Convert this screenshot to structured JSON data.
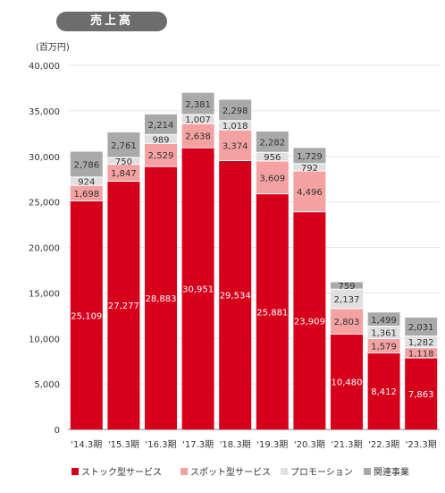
{
  "title": "売上高",
  "colors": {
    "title_bg": "#6d6d6d",
    "stock": "#d7001b",
    "spot": "#f3a1a1",
    "promo": "#e0e0e0",
    "related": "#a9a9a9"
  },
  "chart_data": {
    "type": "bar",
    "stacked": true,
    "unit_label": "(百万円)",
    "categories": [
      "'14.3期",
      "'15.3期",
      "'16.3期",
      "'17.3期",
      "'18.3期",
      "'19.3期",
      "'20.3期",
      "'21.3期",
      "'22.3期",
      "'23.3期"
    ],
    "ylim": [
      0,
      40000
    ],
    "yticks": [
      0,
      5000,
      10000,
      15000,
      20000,
      25000,
      30000,
      35000,
      40000
    ],
    "ytick_labels": [
      "0",
      "5,000",
      "10,000",
      "15,000",
      "20,000",
      "25,000",
      "30,000",
      "35,000",
      "40,000"
    ],
    "grid": true,
    "legend": "bottom",
    "series": [
      {
        "name": "ストック型サービス",
        "color": "#d7001b",
        "values": [
          25109,
          27277,
          28883,
          30951,
          29534,
          25881,
          23909,
          10480,
          8412,
          7863
        ],
        "labels": [
          "25,109",
          "27,277",
          "28,883",
          "30,951",
          "29,534",
          "25,881",
          "23,909",
          "10,480",
          "8,412",
          "7,863"
        ]
      },
      {
        "name": "スポット型サービス",
        "color": "#f3a1a1",
        "values": [
          1698,
          1847,
          2529,
          2638,
          3374,
          3609,
          4496,
          2803,
          1579,
          1118
        ],
        "labels": [
          "1,698",
          "1,847",
          "2,529",
          "2,638",
          "3,374",
          "3,609",
          "4,496",
          "2,803",
          "1,579",
          "1,118"
        ]
      },
      {
        "name": "プロモーション",
        "color": "#e0e0e0",
        "values": [
          924,
          750,
          989,
          1007,
          1018,
          956,
          792,
          2137,
          1361,
          1282
        ],
        "labels": [
          "924",
          "750",
          "989",
          "1,007",
          "1,018",
          "956",
          "792",
          "2,137",
          "1,361",
          "1,282"
        ]
      },
      {
        "name": "関連事業",
        "color": "#a9a9a9",
        "values": [
          2786,
          2761,
          2214,
          2381,
          2298,
          2282,
          1729,
          759,
          1499,
          2031
        ],
        "labels": [
          "2,786",
          "2,761",
          "2,214",
          "2,381",
          "2,298",
          "2,282",
          "1,729",
          "759",
          "1,499",
          "2,031"
        ]
      }
    ]
  }
}
